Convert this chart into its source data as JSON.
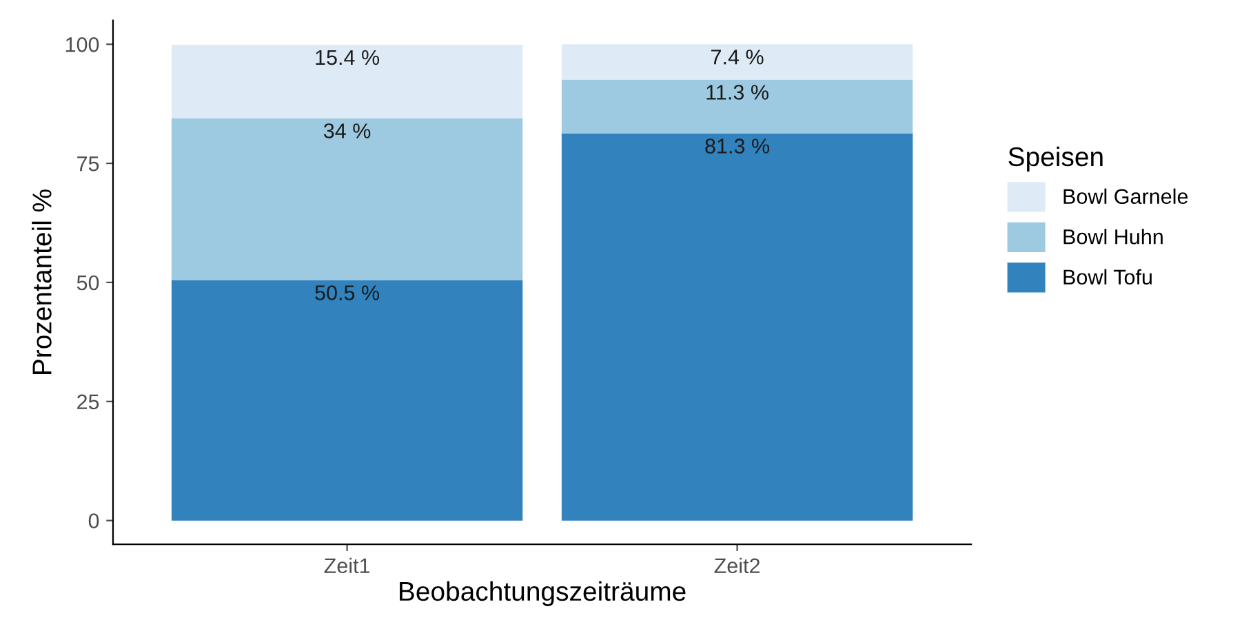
{
  "chart_data": {
    "type": "bar",
    "stacked": true,
    "xlabel": "Beobachtungszeiträume",
    "ylabel": "Prozentanteil %",
    "legend_title": "Speisen",
    "legend": "right",
    "grid": false,
    "categories": [
      "Zeit1",
      "Zeit2"
    ],
    "series": [
      {
        "name": "Bowl Tofu",
        "color": "#3182bd",
        "values": [
          50.5,
          81.3
        ],
        "value_labels": [
          "50.5 %",
          "81.3 %"
        ]
      },
      {
        "name": "Bowl Huhn",
        "color": "#9ecae1",
        "values": [
          34,
          11.3
        ],
        "value_labels": [
          "34 %",
          "11.3 %"
        ]
      },
      {
        "name": "Bowl Garnele",
        "color": "#deebf7",
        "values": [
          15.4,
          7.4
        ],
        "value_labels": [
          "15.4 %",
          "7.4 %"
        ]
      }
    ],
    "ylim": [
      -5,
      105
    ],
    "yticks": [
      0,
      25,
      50,
      75,
      100
    ]
  }
}
